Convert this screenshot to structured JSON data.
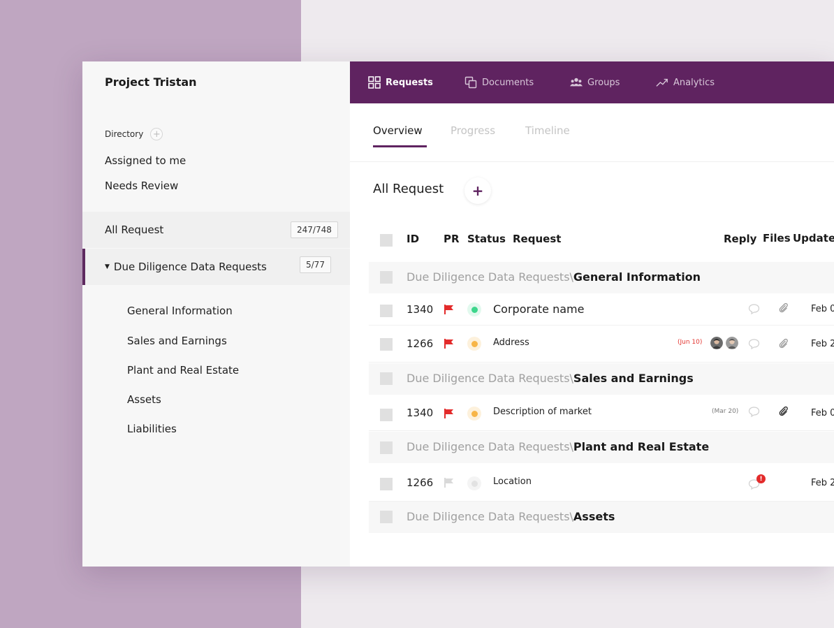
{
  "sidebar": {
    "project_title": "Project Tristan",
    "directory_label": "Directory",
    "directory_add": "+",
    "assigned_label": "Assigned to me",
    "review_label": "Needs Review",
    "all_request": {
      "label": "All Request",
      "count": "247/748"
    },
    "due_diligence": {
      "label": "Due Diligence Data Requests",
      "count": "5/77"
    },
    "sub_items": [
      "General Information",
      "Sales and Earnings",
      "Plant and Real Estate",
      "Assets",
      "Liabilities"
    ]
  },
  "topnav": {
    "tabs": [
      {
        "label": "Requests",
        "icon": "grid-icon",
        "active": true
      },
      {
        "label": "Documents",
        "icon": "documents-icon"
      },
      {
        "label": "Groups",
        "icon": "groups-icon"
      },
      {
        "label": "Analytics",
        "icon": "analytics-icon"
      }
    ]
  },
  "subtabs": [
    "Overview",
    "Progress",
    "Timeline"
  ],
  "main": {
    "title": "All Request",
    "add_label": "+",
    "columns": {
      "id": "ID",
      "pr": "PR",
      "status": "Status",
      "request": "Request",
      "reply": "Reply",
      "files": "Files",
      "updated": "Updated"
    }
  },
  "groups": [
    {
      "prefix": "Due Diligence Data Requests",
      "sep": "\\",
      "name": "General Information"
    },
    {
      "prefix": "Due Diligence Data Requests",
      "sep": "\\",
      "name": "Sales and Earnings"
    },
    {
      "prefix": "Due Diligence Data Requests",
      "sep": "\\",
      "name": "Plant and Real Estate"
    },
    {
      "prefix": "Due Diligence Data Requests",
      "sep": "\\",
      "name": "Assets"
    }
  ],
  "rows": [
    {
      "id": "1340",
      "request": "Corporate name",
      "updated": "Feb 0"
    },
    {
      "id": "1266",
      "request": "Address",
      "date_tag": "(Jun 10)",
      "updated": "Feb 2"
    },
    {
      "id": "1340",
      "request": "Description of market",
      "date_tag": "(Mar 20)",
      "updated": "Feb 0"
    },
    {
      "id": "1266",
      "request": "Location",
      "notification": "!",
      "updated": "Feb 2"
    }
  ],
  "colors": {
    "brand": "#5f2360",
    "flag_red": "#e32b2b",
    "flag_grey": "#d9d9d9",
    "status_green": "#3dd68c",
    "status_orange": "#f7b547",
    "status_grey": "#e2e2e2"
  }
}
